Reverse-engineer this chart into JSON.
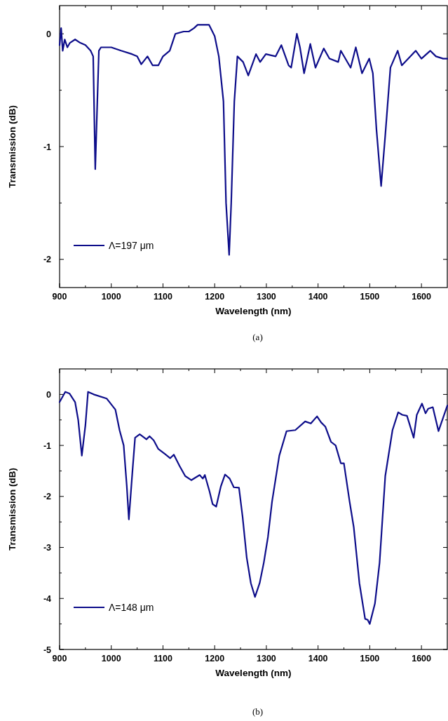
{
  "chart_data": [
    {
      "type": "line",
      "xlabel": "Wavelength (nm)",
      "ylabel": "Transmission (dB)",
      "annotations": [
        "(a)"
      ],
      "legend": "bottom left",
      "xlim": [
        900,
        1650
      ],
      "ylim": [
        -2.25,
        0.25
      ],
      "xticks": [
        900,
        {
          "value": 950,
          "label": null
        },
        1000,
        {
          "value": 1050,
          "label": null
        },
        1100,
        {
          "value": 1150,
          "label": null
        },
        1200,
        {
          "value": 1250,
          "label": null
        },
        1300,
        {
          "value": 1350,
          "label": null
        },
        1400,
        {
          "value": 1450,
          "label": null
        },
        1500,
        {
          "value": 1550,
          "label": null
        },
        1600
      ],
      "yticks": [
        0,
        {
          "value": -0.5,
          "label": null
        },
        -1,
        {
          "value": -1.5,
          "label": null
        },
        -2
      ],
      "series": [
        {
          "name": "Λ=197 μm",
          "color": "#0d0d8a",
          "x": [
            900,
            903,
            906,
            910,
            915,
            920,
            930,
            940,
            950,
            960,
            965,
            969,
            976,
            980,
            1000,
            1019,
            1040,
            1050,
            1058,
            1070,
            1080,
            1091,
            1100,
            1113,
            1124,
            1140,
            1150,
            1160,
            1167,
            1180,
            1189,
            1200,
            1208,
            1217,
            1222,
            1228,
            1232,
            1238,
            1244,
            1255,
            1265,
            1280,
            1288,
            1299,
            1318,
            1329,
            1343,
            1348,
            1359,
            1365,
            1373,
            1385,
            1395,
            1411,
            1422,
            1439,
            1444,
            1463,
            1473,
            1485,
            1499,
            1506,
            1513,
            1522,
            1530,
            1540,
            1554,
            1562,
            1589,
            1600,
            1617,
            1628,
            1642,
            1650
          ],
          "values": [
            -0.1,
            0.05,
            -0.15,
            -0.05,
            -0.12,
            -0.08,
            -0.05,
            -0.08,
            -0.1,
            -0.15,
            -0.2,
            -1.2,
            -0.15,
            -0.12,
            -0.12,
            -0.15,
            -0.18,
            -0.2,
            -0.27,
            -0.2,
            -0.28,
            -0.28,
            -0.2,
            -0.15,
            0.0,
            0.02,
            0.02,
            0.05,
            0.08,
            0.08,
            0.08,
            -0.02,
            -0.2,
            -0.6,
            -1.5,
            -1.96,
            -1.5,
            -0.6,
            -0.2,
            -0.25,
            -0.37,
            -0.18,
            -0.25,
            -0.18,
            -0.2,
            -0.1,
            -0.28,
            -0.3,
            0.0,
            -0.12,
            -0.35,
            -0.09,
            -0.3,
            -0.13,
            -0.22,
            -0.25,
            -0.15,
            -0.3,
            -0.12,
            -0.35,
            -0.22,
            -0.35,
            -0.85,
            -1.35,
            -0.9,
            -0.3,
            -0.15,
            -0.28,
            -0.15,
            -0.22,
            -0.15,
            -0.2,
            -0.22,
            -0.22
          ]
        }
      ]
    },
    {
      "type": "line",
      "xlabel": "Wavelength (nm)",
      "ylabel": "Transmission (dB)",
      "annotations": [
        "(b)"
      ],
      "legend": "bottom left",
      "xlim": [
        900,
        1650
      ],
      "ylim": [
        -5,
        0.5
      ],
      "xticks": [
        900,
        {
          "value": 950,
          "label": null
        },
        1000,
        {
          "value": 1050,
          "label": null
        },
        1100,
        {
          "value": 1150,
          "label": null
        },
        1200,
        {
          "value": 1250,
          "label": null
        },
        1300,
        {
          "value": 1350,
          "label": null
        },
        1400,
        {
          "value": 1450,
          "label": null
        },
        1500,
        {
          "value": 1550,
          "label": null
        },
        1600
      ],
      "yticks": [
        0,
        {
          "value": -0.5,
          "label": null
        },
        -1,
        {
          "value": -1.5,
          "label": null
        },
        -2,
        {
          "value": -2.5,
          "label": null
        },
        -3,
        {
          "value": -3.5,
          "label": null
        },
        -4,
        {
          "value": -4.5,
          "label": null
        },
        -5
      ],
      "series": [
        {
          "name": "Λ=148 μm",
          "color": "#0d0d8a",
          "x": [
            900,
            911,
            919,
            930,
            936,
            943,
            950,
            955,
            966,
            991,
            1008,
            1016,
            1024,
            1030,
            1034,
            1041,
            1046,
            1055,
            1068,
            1074,
            1082,
            1091,
            1104,
            1114,
            1121,
            1132,
            1143,
            1155,
            1171,
            1177,
            1181,
            1190,
            1196,
            1203,
            1212,
            1220,
            1229,
            1237,
            1247,
            1254,
            1262,
            1270,
            1278,
            1287,
            1295,
            1303,
            1311,
            1325,
            1339,
            1356,
            1375,
            1386,
            1398,
            1406,
            1414,
            1425,
            1434,
            1444,
            1450,
            1461,
            1469,
            1480,
            1491,
            1496,
            1500,
            1510,
            1519,
            1530,
            1544,
            1555,
            1563,
            1572,
            1585,
            1591,
            1601,
            1608,
            1613,
            1622,
            1633,
            1650
          ],
          "values": [
            -0.15,
            0.05,
            0.02,
            -0.15,
            -0.5,
            -1.2,
            -0.6,
            0.05,
            0,
            -0.08,
            -0.3,
            -0.7,
            -1.0,
            -1.8,
            -2.45,
            -1.5,
            -0.85,
            -0.78,
            -0.88,
            -0.82,
            -0.9,
            -1.07,
            -1.17,
            -1.25,
            -1.18,
            -1.4,
            -1.6,
            -1.68,
            -1.58,
            -1.65,
            -1.58,
            -1.9,
            -2.15,
            -2.2,
            -1.8,
            -1.57,
            -1.65,
            -1.82,
            -1.83,
            -2.4,
            -3.2,
            -3.7,
            -3.97,
            -3.7,
            -3.3,
            -2.8,
            -2.1,
            -1.2,
            -0.72,
            -0.7,
            -0.53,
            -0.57,
            -0.43,
            -0.55,
            -0.63,
            -0.93,
            -1.0,
            -1.35,
            -1.35,
            -2.1,
            -2.6,
            -3.7,
            -4.4,
            -4.42,
            -4.5,
            -4.1,
            -3.3,
            -1.6,
            -0.7,
            -0.35,
            -0.4,
            -0.42,
            -0.85,
            -0.4,
            -0.18,
            -0.37,
            -0.28,
            -0.25,
            -0.72,
            -0.22
          ]
        }
      ]
    }
  ]
}
